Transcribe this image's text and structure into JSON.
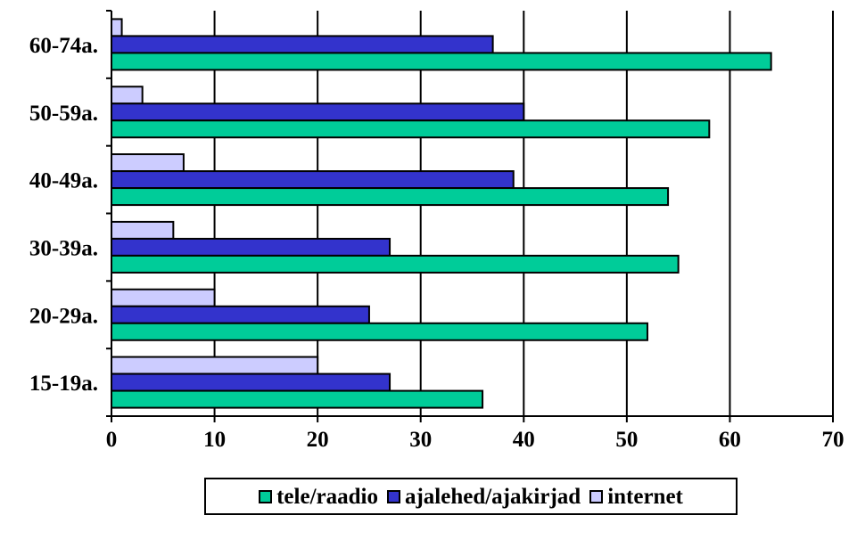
{
  "chart_data": {
    "type": "bar",
    "orientation": "horizontal",
    "categories": [
      "15-19a.",
      "20-29a.",
      "30-39a.",
      "40-49a.",
      "50-59a.",
      "60-74a."
    ],
    "series": [
      {
        "name": "tele/raadio",
        "color": "#00cc99",
        "values": [
          36,
          52,
          55,
          54,
          58,
          64
        ]
      },
      {
        "name": "ajalehed/ajakirjad",
        "color": "#3333cc",
        "values": [
          27,
          25,
          27,
          39,
          40,
          37
        ]
      },
      {
        "name": "internet",
        "color": "#ccccff",
        "values": [
          20,
          10,
          6,
          7,
          3,
          1
        ]
      }
    ],
    "xlim": [
      0,
      70
    ],
    "xticks": [
      "0",
      "10",
      "20",
      "30",
      "40",
      "50",
      "60",
      "70"
    ],
    "grid": "vertical",
    "legend": "bottom"
  }
}
